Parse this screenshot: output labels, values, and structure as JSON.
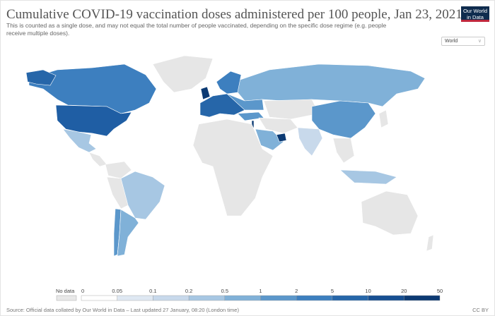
{
  "title": "Cumulative COVID-19 vaccination doses administered per 100 people, Jan 23, 2021",
  "subtitle": "This is counted as a single dose, and may not equal the total number of people vaccinated, depending on the specific dose regime (e.g. people receive multiple doses).",
  "logo": {
    "line1": "Our World",
    "line2": "in Data"
  },
  "region_select": {
    "value": "World"
  },
  "legend": {
    "no_data_label": "No data",
    "no_data_color": "#e8e8e8",
    "ticks": [
      "0",
      "0.05",
      "0.1",
      "0.2",
      "0.5",
      "1",
      "2",
      "5",
      "10",
      "20",
      "50"
    ],
    "colors": [
      "#ffffff",
      "#dfe8f2",
      "#c8d9eb",
      "#a7c7e3",
      "#80b1d8",
      "#5b97cb",
      "#3d7fbf",
      "#2666a9",
      "#174f92",
      "#0c3a73"
    ]
  },
  "footer": {
    "source": "Source: Official data collated by Our World in Data – Last updated 27 January, 08:20 (London time)",
    "license": "CC BY"
  }
}
